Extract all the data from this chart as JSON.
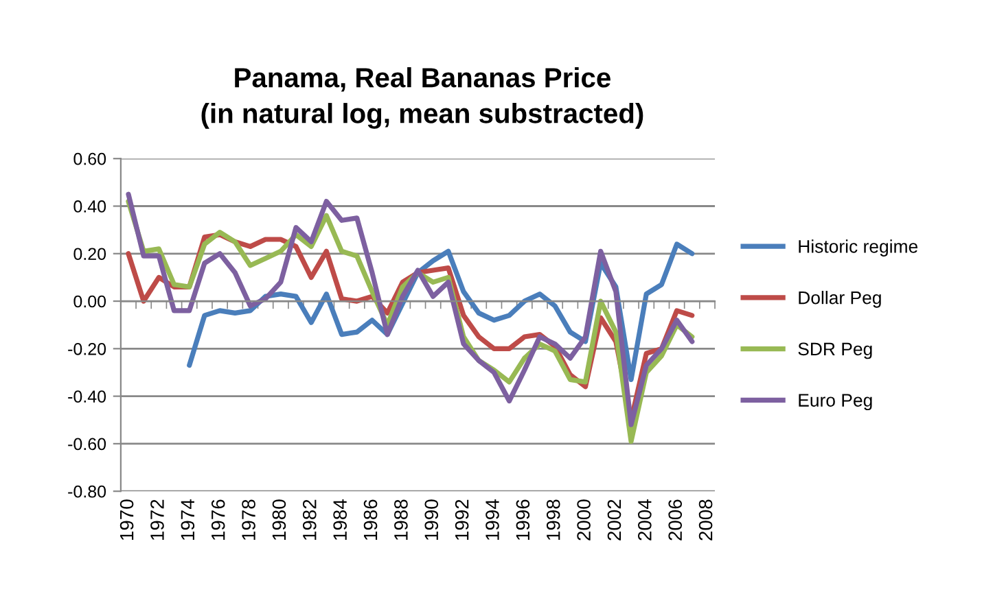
{
  "chart_data": {
    "type": "line",
    "title": "Panama, Real Bananas Price\n(in natural log, mean substracted)",
    "categories": [
      "1970",
      null,
      "1972",
      null,
      "1974",
      null,
      "1976",
      null,
      "1978",
      null,
      "1980",
      null,
      "1982",
      null,
      "1984",
      null,
      "1986",
      null,
      "1988",
      null,
      "1990",
      null,
      "1992",
      null,
      "1994",
      null,
      "1996",
      null,
      "1998",
      null,
      "2000",
      null,
      "2002",
      null,
      "2004",
      null,
      "2006",
      null,
      "2008"
    ],
    "series": [
      {
        "name": "Historic regime",
        "color": "#4a7ebb",
        "values": [
          null,
          null,
          null,
          null,
          -0.27,
          -0.06,
          -0.04,
          -0.05,
          -0.04,
          0.02,
          0.03,
          0.02,
          -0.09,
          0.03,
          -0.14,
          -0.13,
          -0.08,
          -0.14,
          -0.01,
          0.12,
          0.17,
          0.21,
          0.04,
          -0.05,
          -0.08,
          -0.06,
          0.0,
          0.03,
          -0.02,
          -0.13,
          -0.17,
          0.16,
          0.06,
          -0.33,
          0.03,
          0.07,
          0.24,
          0.2,
          null
        ]
      },
      {
        "name": "Dollar Peg",
        "color": "#be4b48",
        "values": [
          0.2,
          0.0,
          0.1,
          0.06,
          0.06,
          0.27,
          0.28,
          0.25,
          0.23,
          0.26,
          0.26,
          0.23,
          0.1,
          0.21,
          0.01,
          0.0,
          0.02,
          -0.05,
          0.08,
          0.12,
          0.13,
          0.14,
          -0.06,
          -0.15,
          -0.2,
          -0.2,
          -0.15,
          -0.14,
          -0.19,
          -0.31,
          -0.36,
          -0.07,
          -0.17,
          -0.5,
          -0.22,
          -0.2,
          -0.04,
          -0.06,
          null
        ]
      },
      {
        "name": "SDR Peg",
        "color": "#98b954",
        "values": [
          0.42,
          0.21,
          0.22,
          0.07,
          0.06,
          0.24,
          0.29,
          0.25,
          0.15,
          0.18,
          0.21,
          0.28,
          0.23,
          0.36,
          0.21,
          0.19,
          0.04,
          -0.1,
          0.06,
          0.12,
          0.08,
          0.1,
          -0.15,
          -0.25,
          -0.29,
          -0.34,
          -0.24,
          -0.18,
          -0.21,
          -0.33,
          -0.34,
          0.0,
          -0.13,
          -0.59,
          -0.3,
          -0.23,
          -0.1,
          -0.15,
          null
        ]
      },
      {
        "name": "Euro Peg",
        "color": "#7d60a0",
        "values": [
          0.45,
          0.19,
          0.19,
          -0.04,
          -0.04,
          0.16,
          0.2,
          0.12,
          -0.02,
          0.01,
          0.08,
          0.31,
          0.25,
          0.42,
          0.34,
          0.35,
          0.12,
          -0.14,
          0.02,
          0.13,
          0.02,
          0.08,
          -0.18,
          -0.25,
          -0.3,
          -0.42,
          -0.29,
          -0.15,
          -0.18,
          -0.24,
          -0.15,
          0.21,
          0.04,
          -0.52,
          -0.27,
          -0.2,
          -0.08,
          -0.17,
          null
        ]
      }
    ],
    "ylim": [
      -0.8,
      0.6
    ],
    "yticks": [
      {
        "value": -0.8,
        "label": "-0.80"
      },
      {
        "value": -0.6,
        "label": "-0.60"
      },
      {
        "value": -0.4,
        "label": "-0.40"
      },
      {
        "value": -0.2,
        "label": "-0.20"
      },
      {
        "value": 0,
        "label": "0.00"
      },
      {
        "value": 0.2,
        "label": "0.20"
      },
      {
        "value": 0.4,
        "label": "0.40"
      },
      {
        "value": 0.6,
        "label": "0.60"
      }
    ],
    "grid": "y",
    "legend": "right",
    "marker": "none",
    "line_style": "solid"
  }
}
